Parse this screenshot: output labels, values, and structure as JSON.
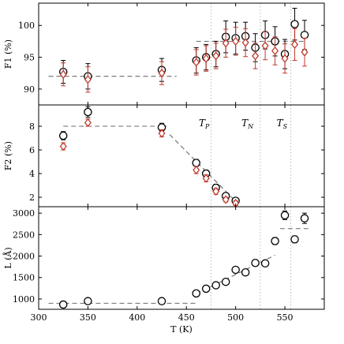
{
  "chart_data": [
    {
      "type": "scatter",
      "ylabel": "F1 (%)",
      "ylim": [
        87.5,
        103.5
      ],
      "yticks": [
        90,
        95,
        100
      ],
      "xlim": [
        300,
        590
      ],
      "series": [
        {
          "marker": "circle",
          "color": "#000000",
          "x": [
            325,
            350,
            425,
            460,
            470,
            480,
            490,
            500,
            510,
            520,
            530,
            540,
            550,
            560,
            570
          ],
          "y": [
            92.7,
            92.0,
            93.0,
            94.5,
            95.0,
            95.5,
            98.2,
            98.0,
            98.3,
            96.5,
            98.5,
            97.5,
            95.5,
            100.2,
            98.5
          ],
          "err": [
            1.8,
            2.0,
            1.8,
            2.0,
            2.0,
            2.0,
            2.5,
            2.5,
            2.2,
            2.2,
            2.2,
            2.3,
            2.3,
            2.5,
            2.3
          ]
        },
        {
          "marker": "diamond",
          "color": "#c0392b",
          "x": [
            325,
            350,
            425,
            460,
            470,
            480,
            490,
            500,
            510,
            520,
            530,
            540,
            550,
            560,
            570
          ],
          "y": [
            92.3,
            91.5,
            92.5,
            94.2,
            94.8,
            95.2,
            97.2,
            97.5,
            97.3,
            95.2,
            96.8,
            96.0,
            94.8,
            97.0,
            95.8
          ],
          "err": [
            1.8,
            2.0,
            1.8,
            2.0,
            2.0,
            2.0,
            2.2,
            2.2,
            2.2,
            2.0,
            2.2,
            2.2,
            2.3,
            2.5,
            2.2
          ]
        }
      ],
      "fits": [
        {
          "x": [
            310,
            440
          ],
          "y": [
            92.0,
            92.0
          ]
        },
        {
          "x": [
            460,
            570
          ],
          "y": [
            97.5,
            97.5
          ]
        }
      ]
    },
    {
      "type": "scatter",
      "ylabel": "F2 (%)",
      "ylim": [
        1.2,
        9.8
      ],
      "yticks": [
        2,
        4,
        6,
        8
      ],
      "xlim": [
        300,
        590
      ],
      "series": [
        {
          "marker": "circle",
          "color": "#000000",
          "x": [
            325,
            350,
            425,
            460,
            470,
            480,
            490,
            500
          ],
          "y": [
            7.2,
            9.2,
            7.9,
            4.9,
            4.0,
            2.8,
            2.1,
            1.7
          ],
          "err": [
            0.35,
            0.45,
            0.35,
            0.3,
            0.3,
            0.3,
            0.25,
            0.25
          ]
        },
        {
          "marker": "diamond",
          "color": "#c0392b",
          "x": [
            325,
            350,
            425,
            460,
            470,
            480,
            490,
            500
          ],
          "y": [
            6.3,
            8.3,
            7.4,
            4.3,
            3.6,
            2.5,
            1.8,
            1.5
          ],
          "err": [
            0.3,
            0.3,
            0.3,
            0.3,
            0.3,
            0.25,
            0.2,
            0.2
          ]
        }
      ],
      "fits": [
        {
          "x": [
            325,
            430
          ],
          "y": [
            8.0,
            8.0
          ]
        },
        {
          "x": [
            433,
            503
          ],
          "y": [
            7.3,
            1.4
          ]
        }
      ],
      "annotations": [
        {
          "text": "T",
          "sub": "P",
          "x": 468,
          "y": 8.4
        },
        {
          "text": "T",
          "sub": "N",
          "x": 512,
          "y": 8.4
        },
        {
          "text": "T",
          "sub": "S",
          "x": 547,
          "y": 8.4
        }
      ]
    },
    {
      "type": "scatter",
      "ylabel": "L (Å)",
      "xlabel": "T (K)",
      "ylim": [
        760,
        3150
      ],
      "yticks": [
        1000,
        1500,
        2000,
        2500,
        3000
      ],
      "xlim": [
        300,
        590
      ],
      "xticks": [
        300,
        350,
        400,
        450,
        500,
        550
      ],
      "series": [
        {
          "marker": "circle",
          "color": "#000000",
          "x": [
            325,
            350,
            425,
            460,
            470,
            480,
            490,
            500,
            510,
            520,
            530,
            540,
            550,
            560,
            570
          ],
          "y": [
            870,
            950,
            950,
            1130,
            1240,
            1320,
            1400,
            1680,
            1620,
            1840,
            1830,
            2350,
            2950,
            2390,
            2880
          ],
          "err": [
            30,
            30,
            30,
            50,
            50,
            50,
            50,
            60,
            60,
            60,
            60,
            80,
            100,
            80,
            120
          ]
        }
      ],
      "fits": [
        {
          "x": [
            310,
            460
          ],
          "y": [
            900,
            900
          ]
        },
        {
          "x": [
            460,
            540
          ],
          "y": [
            1120,
            2020
          ]
        },
        {
          "x": [
            545,
            575
          ],
          "y": [
            2640,
            2640
          ]
        }
      ]
    }
  ],
  "transitions": [
    {
      "name": "T_P",
      "x": 475
    },
    {
      "name": "T_N",
      "x": 525
    },
    {
      "name": "T_S",
      "x": 556
    }
  ],
  "colors": {
    "circle": "#000000",
    "diamond": "#c0392b",
    "fit": "#6b6b6b",
    "transition": "#bbbbbb"
  }
}
